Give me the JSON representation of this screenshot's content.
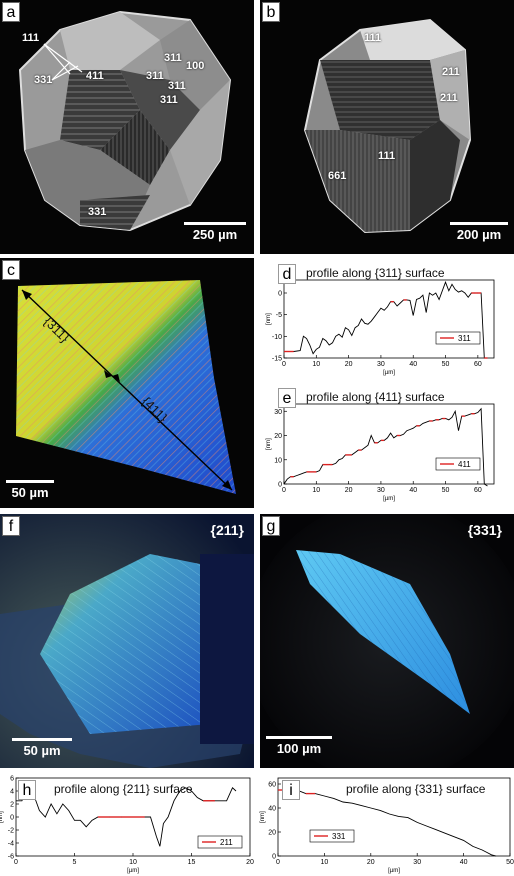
{
  "panels": {
    "a": {
      "letter": "a",
      "scalebar": "250 µm",
      "labels": [
        "111",
        "331",
        "411",
        "311",
        "311",
        "100",
        "311",
        "311",
        "331"
      ]
    },
    "b": {
      "letter": "b",
      "scalebar": "200 µm",
      "labels": [
        "111",
        "211",
        "211",
        "111",
        "661"
      ]
    },
    "c": {
      "letter": "c",
      "scalebar": "50 µm",
      "arrow_labels": [
        "{311}",
        "{411}"
      ]
    },
    "f": {
      "letter": "f",
      "scalebar": "50 µm",
      "face": "{211}"
    },
    "g": {
      "letter": "g",
      "scalebar": "100 µm",
      "face": "{331}"
    }
  },
  "chart_data": [
    {
      "id": "d",
      "letter": "d",
      "type": "line",
      "title": "profile along {311} surface",
      "xlabel": "[µm]",
      "ylabel": "[nm]",
      "xlim": [
        0,
        65
      ],
      "ylim": [
        -15,
        3
      ],
      "xticks": [
        0,
        10,
        20,
        30,
        40,
        50,
        60
      ],
      "yticks": [
        0,
        -5,
        -10,
        -15
      ],
      "legend": "311",
      "series": [
        {
          "name": "311",
          "x": [
            0,
            3,
            5,
            6,
            7,
            8,
            9,
            10,
            11,
            12,
            13,
            14,
            15,
            16,
            17,
            18,
            19,
            20,
            21,
            22,
            23,
            24,
            25,
            26,
            27,
            28,
            29,
            30,
            31,
            32,
            33,
            34,
            35,
            36,
            37,
            38,
            39,
            40,
            41,
            42,
            43,
            44,
            45,
            46,
            47,
            48,
            49,
            50,
            51,
            52,
            53,
            54,
            55,
            56,
            57,
            58,
            59,
            60,
            61,
            62,
            63
          ],
          "y": [
            -13.5,
            -13.5,
            -13.3,
            -10,
            -10.5,
            -12,
            -14,
            -13,
            -12.5,
            -10.5,
            -11,
            -12,
            -11.5,
            -10,
            -9.5,
            -10.2,
            -8,
            -8.5,
            -9.8,
            -8,
            -7.5,
            -6,
            -7,
            -7.2,
            -6.5,
            -5.5,
            -4.5,
            -3.5,
            -4,
            -3.2,
            -2,
            -2,
            -3,
            -2.3,
            -1.6,
            -1.6,
            -1.7,
            -5.2,
            -1.5,
            -1.2,
            -0.5,
            -4.5,
            0,
            -0.5,
            0,
            -1.5,
            0.5,
            2.5,
            0.5,
            2,
            0.8,
            0.2,
            0.5,
            0,
            -1,
            0,
            0,
            0,
            0,
            -15,
            -15
          ]
        }
      ]
    },
    {
      "id": "e",
      "letter": "e",
      "type": "line",
      "title": "profile along {411} surface",
      "xlabel": "[µm]",
      "ylabel": "[nm]",
      "xlim": [
        0,
        65
      ],
      "ylim": [
        0,
        33
      ],
      "xticks": [
        0,
        10,
        20,
        30,
        40,
        50,
        60
      ],
      "yticks": [
        0,
        10,
        20,
        30
      ],
      "legend": "411",
      "series": [
        {
          "name": "411",
          "x": [
            0,
            1,
            2,
            3,
            4,
            5,
            6,
            7,
            8,
            9,
            10,
            11,
            12,
            13,
            14,
            15,
            16,
            17,
            18,
            19,
            20,
            21,
            22,
            23,
            24,
            25,
            26,
            27,
            28,
            29,
            30,
            31,
            32,
            33,
            34,
            35,
            36,
            37,
            38,
            39,
            40,
            41,
            42,
            43,
            44,
            45,
            46,
            47,
            48,
            49,
            50,
            51,
            52,
            53,
            54,
            55,
            56,
            57,
            58,
            59,
            60,
            61,
            62,
            63
          ],
          "y": [
            0,
            2,
            3,
            3,
            3.5,
            4,
            4.5,
            5,
            5,
            5,
            5,
            5.5,
            8,
            8,
            8,
            8,
            8.5,
            10,
            10.5,
            12,
            12,
            12,
            13,
            14,
            14,
            15,
            16,
            20,
            17,
            17,
            18,
            18,
            19,
            21,
            19,
            20,
            20,
            20.5,
            22,
            22.5,
            23,
            24,
            24,
            25,
            25.5,
            26,
            26,
            26.5,
            26.5,
            27,
            27,
            26.5,
            27.5,
            30,
            22,
            28,
            28,
            28.5,
            29,
            29,
            29.5,
            31,
            0,
            -8
          ]
        }
      ]
    },
    {
      "id": "h",
      "letter": "h",
      "type": "line",
      "title": "profile along {211} surface",
      "xlabel": "[µm]",
      "ylabel": "[nm]",
      "xlim": [
        0,
        20
      ],
      "ylim": [
        -6,
        6
      ],
      "xticks": [
        0,
        5,
        10,
        15,
        20
      ],
      "yticks": [
        6,
        4,
        2,
        0,
        -2,
        -4,
        -6
      ],
      "legend": "211",
      "series": [
        {
          "name": "211",
          "x": [
            0,
            0.5,
            1,
            1.3,
            1.6,
            2,
            2.5,
            3,
            3.5,
            4,
            4.5,
            5,
            5.5,
            6,
            6.5,
            7,
            8,
            9,
            10,
            11,
            11.5,
            12,
            12.3,
            12.6,
            13,
            13.5,
            14,
            14.5,
            15,
            15.5,
            16,
            17,
            17.5,
            18,
            18.5,
            18.8
          ],
          "y": [
            2.5,
            2.5,
            4.5,
            4,
            3,
            1,
            0,
            2,
            0.5,
            2,
            1,
            -0.5,
            -0.5,
            -1.5,
            -0.5,
            0,
            0,
            0,
            0,
            0,
            0,
            -3,
            -4.5,
            -1,
            0,
            2.5,
            4,
            4.5,
            4,
            3,
            2.5,
            2.5,
            2.5,
            2.5,
            4.5,
            4
          ]
        }
      ]
    },
    {
      "id": "i",
      "letter": "i",
      "type": "line",
      "title": "profile along {331} surface",
      "xlabel": "[µm]",
      "ylabel": "[nm]",
      "xlim": [
        0,
        50
      ],
      "ylim": [
        0,
        65
      ],
      "xticks": [
        0,
        10,
        20,
        30,
        40,
        50
      ],
      "yticks": [
        0,
        20,
        40,
        60
      ],
      "legend": "331",
      "series": [
        {
          "name": "331",
          "x": [
            0,
            2,
            4,
            6,
            8,
            10,
            12,
            14,
            16,
            18,
            20,
            22,
            24,
            26,
            28,
            30,
            32,
            34,
            36,
            38,
            40,
            42,
            44,
            45,
            46,
            47
          ],
          "y": [
            55,
            55,
            55,
            52,
            52,
            50,
            48,
            45,
            44,
            42,
            40,
            38,
            35,
            33,
            32,
            28,
            25,
            22,
            19,
            16,
            13,
            8,
            5,
            3,
            1,
            0
          ]
        }
      ]
    }
  ]
}
